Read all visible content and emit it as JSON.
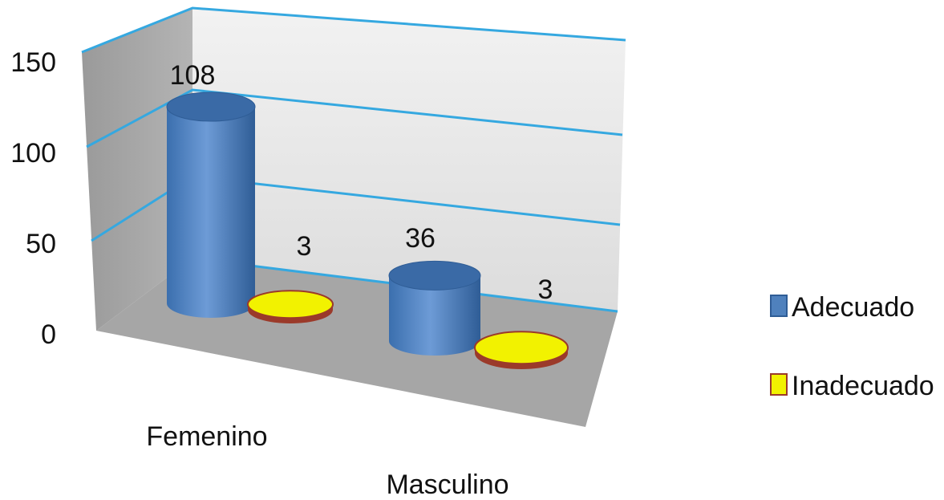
{
  "chart_data": {
    "type": "bar",
    "style": "3d-cylinder",
    "categories": [
      "Femenino",
      "Masculino"
    ],
    "series": [
      {
        "name": "Adecuado",
        "values": [
          108,
          36
        ],
        "color": "#4f81bd"
      },
      {
        "name": "Inadecuado",
        "values": [
          3,
          3
        ],
        "color": "#f2f200"
      }
    ],
    "y_ticks": [
      "0",
      "50",
      "100",
      "150"
    ],
    "ylim": [
      0,
      150
    ],
    "grid": true,
    "legend_position": "right",
    "data_labels": true
  },
  "colors": {
    "gridline": "#35a8e0",
    "back_wall": "#ebebeb",
    "side_wall": "#a6a6a6",
    "floor": "#a6a6a6",
    "inadecuado_border": "#9b3a2a"
  }
}
